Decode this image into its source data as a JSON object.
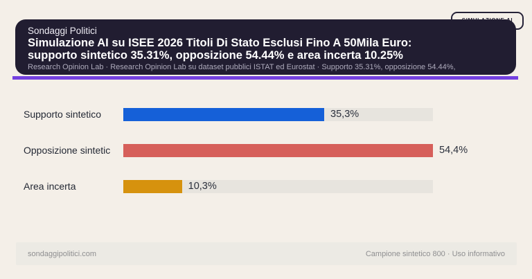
{
  "badge": {
    "label": "SIMULAZIONE AI"
  },
  "header": {
    "kicker": "Sondaggi Politici",
    "title_line1": "Simulazione AI su ISEE 2026 Titoli Di Stato Esclusi Fino A 50Mila Euro:",
    "title_line2": "supporto sintetico 35.31%, opposizione 54.44% e area incerta 10.25%",
    "subtitle": "Research Opinion Lab · Research Opinion Lab su dataset pubblici ISTAT ed Eurostat · Supporto 35.31%, opposizione 54.44%,"
  },
  "chart_data": {
    "type": "bar",
    "orientation": "horizontal",
    "categories": [
      "Supporto sintetico",
      "Opposizione sintetic",
      "Area incerta"
    ],
    "values": [
      35.3,
      54.4,
      10.3
    ],
    "value_labels": [
      "35,3%",
      "54,4%",
      "10,3%"
    ],
    "bar_colors": [
      "#1560d8",
      "#d65f5a",
      "#d6920e"
    ],
    "track_color": "#e7e4de",
    "xlim": [
      0,
      54.4
    ],
    "bars_scaled_to_max": true,
    "grid": false,
    "legend": false
  },
  "footer": {
    "left": "sondaggipolitici.com",
    "right": "Campione sintetico 800 · Uso informativo"
  },
  "colors": {
    "page_background": "#f4efe8",
    "card_background": "#211d31",
    "accent_rule": "#7440e0",
    "title_text": "#ffffff",
    "subtitle_text": "#aeabbc",
    "footer_band": "#eceae4",
    "footer_text": "#8e8e90"
  }
}
